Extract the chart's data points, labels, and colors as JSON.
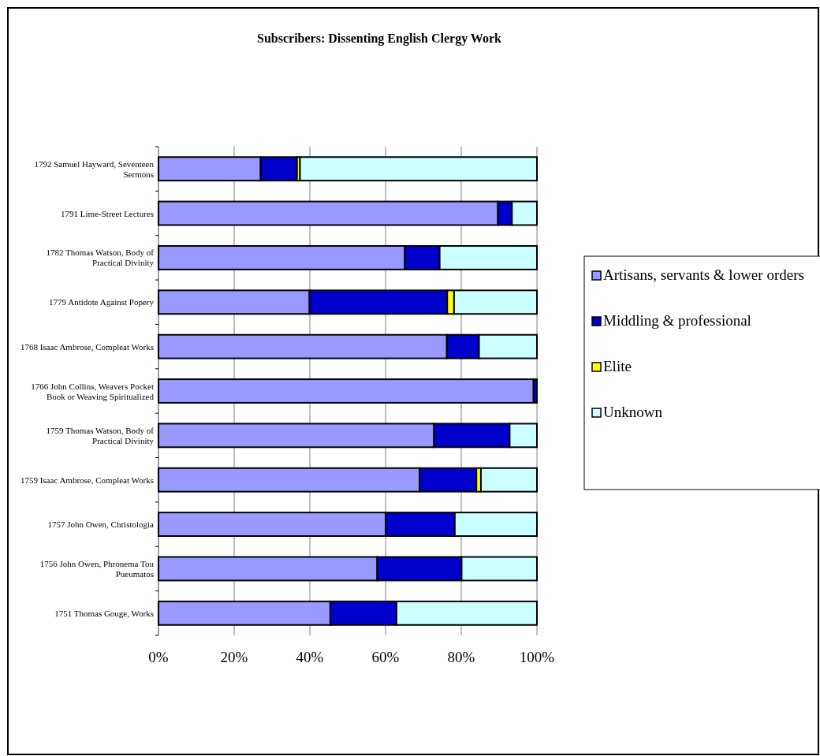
{
  "chart_data": {
    "type": "bar",
    "orientation": "horizontal",
    "stacked": true,
    "title": "Subscribers: Dissenting English Clergy Work",
    "categories": [
      "1792 Samuel Hayward, Seventeen Sermons",
      "1791 Lime-Street Lectures",
      "1782 Thomas Watson, Body of Practical Divinity",
      "1779 Antidote Against Popery",
      "1768 Isaac Ambrose, Compleat Works",
      "1766 John Collins, Weavers Pocket Book or Weaving Spiritualized",
      "1759 Thomas Watson, Body of Practical Divinity",
      "1759 Isaac Ambrose, Compleat Works",
      "1757 John Owen, Christologia",
      "1756 John Owen, Phronema Tou Pueumatos",
      "1751 Thomas Gouge, Works"
    ],
    "series": [
      {
        "name": "Artisans, servants & lower orders",
        "color": "#9999ff",
        "values": [
          27,
          89.7,
          65.1,
          39.9,
          76.2,
          99.1,
          72.8,
          69,
          60,
          57.8,
          45.4
        ]
      },
      {
        "name": "Middling & professional",
        "color": "#0000cc",
        "values": [
          9.6,
          3.7,
          9.2,
          36.4,
          8.5,
          0.9,
          20,
          15,
          18.3,
          22.3,
          17.5
        ]
      },
      {
        "name": "Elite",
        "color": "#ffff00",
        "values": [
          0.8,
          0,
          0,
          1.8,
          0,
          0,
          0,
          1.2,
          0,
          0,
          0
        ]
      },
      {
        "name": "Unknown",
        "color": "#ccffff",
        "values": [
          62.6,
          6.6,
          25.7,
          21.9,
          15.3,
          0,
          7.2,
          14.8,
          21.7,
          19.9,
          37.1
        ]
      }
    ],
    "xlim": [
      0,
      100
    ],
    "xticks": [
      {
        "value": 0,
        "label": "0%"
      },
      {
        "value": 20,
        "label": "20%"
      },
      {
        "value": 40,
        "label": "40%"
      },
      {
        "value": 60,
        "label": "60%"
      },
      {
        "value": 80,
        "label": "80%"
      },
      {
        "value": 100,
        "label": "100%"
      }
    ],
    "grid": "x",
    "legend": "right"
  }
}
